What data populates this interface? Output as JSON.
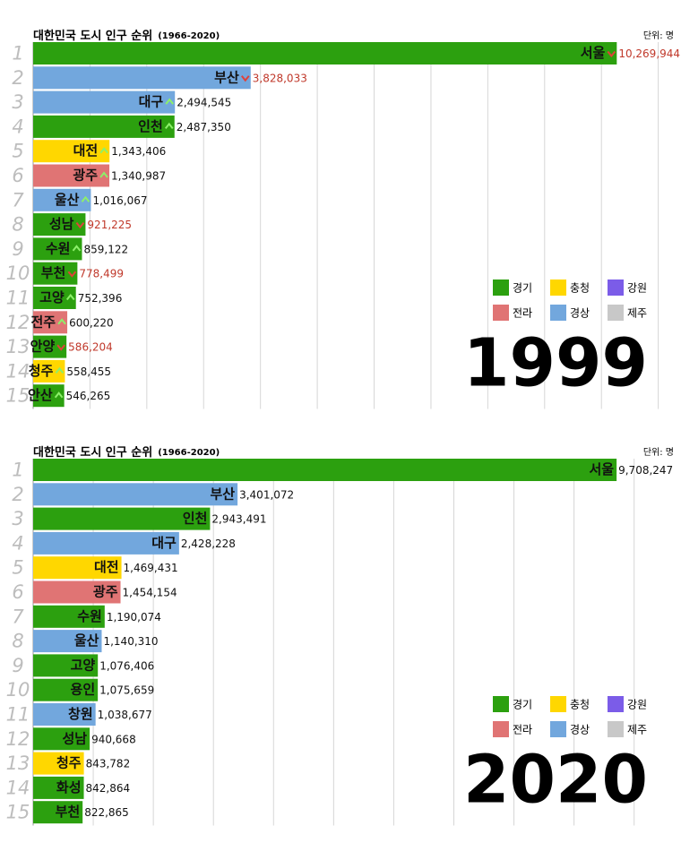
{
  "chart_data": [
    {
      "type": "bar",
      "title": "대한민국 도시 인구 순위",
      "subtitle": "(1966-2020)",
      "unit": "단위: 명",
      "year": "1999",
      "ranks": [
        1,
        2,
        3,
        4,
        5,
        6,
        7,
        8,
        9,
        10,
        11,
        12,
        13,
        14,
        15
      ],
      "categories": [
        "서울",
        "부산",
        "대구",
        "인천",
        "대전",
        "광주",
        "울산",
        "성남",
        "수원",
        "부천",
        "고양",
        "전주",
        "안양",
        "청주",
        "안산"
      ],
      "values": [
        10269944,
        3828033,
        2494545,
        2487350,
        1343406,
        1340987,
        1016067,
        921225,
        859122,
        778499,
        752396,
        600220,
        586204,
        558455,
        546265
      ],
      "value_labels": [
        "10,269,944",
        "3,828,033",
        "2,494,545",
        "2,487,350",
        "1,343,406",
        "1,340,987",
        "1,016,067",
        "921,225",
        "859,122",
        "778,499",
        "752,396",
        "600,220",
        "586,204",
        "558,455",
        "546,265"
      ],
      "regions": [
        "경기",
        "경상",
        "경상",
        "경기",
        "충청",
        "전라",
        "경상",
        "경기",
        "경기",
        "경기",
        "경기",
        "전라",
        "경기",
        "충청",
        "경기"
      ],
      "trend": [
        "down",
        "down",
        "up",
        "up",
        "up",
        "up",
        "up",
        "down",
        "up",
        "down",
        "up",
        "up",
        "down",
        "up",
        "up"
      ],
      "legend": [
        {
          "name": "경기",
          "color": "#2ca00f"
        },
        {
          "name": "충청",
          "color": "#ffd700"
        },
        {
          "name": "강원",
          "color": "#7b5ce8"
        },
        {
          "name": "전라",
          "color": "#e07474"
        },
        {
          "name": "경상",
          "color": "#72a7dd"
        },
        {
          "name": "제주",
          "color": "#c8c8c8"
        }
      ],
      "xlim": [
        0,
        11400000
      ],
      "xticks": [
        1000000,
        2000000,
        3000000,
        4000000,
        5000000,
        6000000,
        7000000,
        8000000,
        9000000,
        10000000,
        11000000
      ],
      "grid": true
    },
    {
      "type": "bar",
      "title": "대한민국 도시 인구 순위",
      "subtitle": "(1966-2020)",
      "unit": "단위: 명",
      "year": "2020",
      "ranks": [
        1,
        2,
        3,
        4,
        5,
        6,
        7,
        8,
        9,
        10,
        11,
        12,
        13,
        14,
        15
      ],
      "categories": [
        "서울",
        "부산",
        "인천",
        "대구",
        "대전",
        "광주",
        "수원",
        "울산",
        "고양",
        "용인",
        "창원",
        "성남",
        "청주",
        "화성",
        "부천"
      ],
      "values": [
        9708247,
        3401072,
        2943491,
        2428228,
        1469431,
        1454154,
        1190074,
        1140310,
        1076406,
        1075659,
        1038677,
        940668,
        843782,
        842864,
        822865
      ],
      "value_labels": [
        "9,708,247",
        "3,401,072",
        "2,943,491",
        "2,428,228",
        "1,469,431",
        "1,454,154",
        "1,190,074",
        "1,140,310",
        "1,076,406",
        "1,075,659",
        "1,038,677",
        "940,668",
        "843,782",
        "842,864",
        "822,865"
      ],
      "regions": [
        "경기",
        "경상",
        "경기",
        "경상",
        "충청",
        "전라",
        "경기",
        "경상",
        "경기",
        "경기",
        "경상",
        "경기",
        "충청",
        "경기",
        "경기"
      ],
      "legend": [
        {
          "name": "경기",
          "color": "#2ca00f"
        },
        {
          "name": "충청",
          "color": "#ffd700"
        },
        {
          "name": "강원",
          "color": "#7b5ce8"
        },
        {
          "name": "전라",
          "color": "#e07474"
        },
        {
          "name": "경상",
          "color": "#72a7dd"
        },
        {
          "name": "제주",
          "color": "#c8c8c8"
        }
      ],
      "xlim": [
        0,
        10780000
      ],
      "xticks": [
        1000000,
        2000000,
        3000000,
        4000000,
        5000000,
        6000000,
        7000000,
        8000000,
        9000000,
        10000000
      ],
      "grid": true
    }
  ]
}
